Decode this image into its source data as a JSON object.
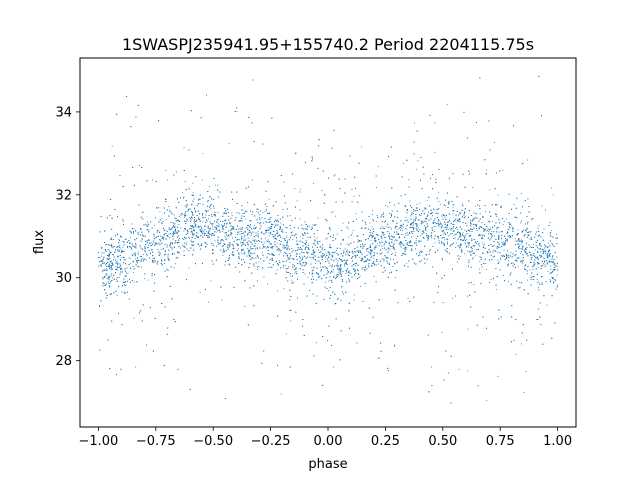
{
  "chart_data": {
    "type": "scatter",
    "title": "1SWASPJ235941.95+155740.2 Period 2204115.75s",
    "xlabel": "phase",
    "ylabel": "flux",
    "xlim": [
      -1.08,
      1.08
    ],
    "ylim": [
      26.4,
      35.3
    ],
    "xticks": [
      -1.0,
      -0.75,
      -0.5,
      -0.25,
      0.0,
      0.25,
      0.5,
      0.75,
      1.0
    ],
    "xtick_labels": [
      "−1.00",
      "−0.75",
      "−0.50",
      "−0.25",
      "0.00",
      "0.25",
      "0.50",
      "0.75",
      "1.00"
    ],
    "yticks": [
      28,
      30,
      32,
      34
    ],
    "ytick_labels": [
      "28",
      "30",
      "32",
      "34"
    ],
    "grid": false,
    "legend": "none",
    "marker_color": "#1f77b4",
    "phase_fold": {
      "x_range": [
        -1.0,
        1.0
      ],
      "profile": [
        {
          "phase": 0.0,
          "flux": 30.3
        },
        {
          "phase": 0.1,
          "flux": 30.4
        },
        {
          "phase": 0.2,
          "flux": 30.7
        },
        {
          "phase": 0.3,
          "flux": 31.0
        },
        {
          "phase": 0.4,
          "flux": 31.3
        },
        {
          "phase": 0.5,
          "flux": 31.2
        },
        {
          "phase": 0.6,
          "flux": 31.0
        },
        {
          "phase": 0.7,
          "flux": 31.0
        },
        {
          "phase": 0.8,
          "flux": 30.8
        },
        {
          "phase": 0.9,
          "flux": 30.6
        },
        {
          "phase": 1.0,
          "flux": 30.3
        }
      ],
      "flux_range": [
        26.9,
        34.9
      ]
    }
  }
}
